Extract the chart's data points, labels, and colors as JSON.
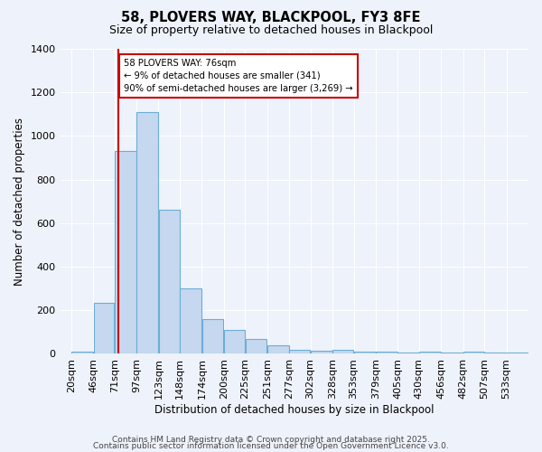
{
  "title": "58, PLOVERS WAY, BLACKPOOL, FY3 8FE",
  "subtitle": "Size of property relative to detached houses in Blackpool",
  "xlabel": "Distribution of detached houses by size in Blackpool",
  "ylabel": "Number of detached properties",
  "bin_labels": [
    "20sqm",
    "46sqm",
    "71sqm",
    "97sqm",
    "123sqm",
    "148sqm",
    "174sqm",
    "200sqm",
    "225sqm",
    "251sqm",
    "277sqm",
    "302sqm",
    "328sqm",
    "353sqm",
    "379sqm",
    "405sqm",
    "430sqm",
    "456sqm",
    "482sqm",
    "507sqm",
    "533sqm"
  ],
  "bar_values": [
    10,
    233,
    930,
    1110,
    660,
    300,
    160,
    110,
    70,
    40,
    20,
    15,
    20,
    10,
    10,
    5,
    10,
    5,
    10,
    5,
    5
  ],
  "bar_color": "#c5d8f0",
  "bar_edge_color": "#6baed6",
  "vline_color": "#cc0000",
  "annotation_title": "58 PLOVERS WAY: 76sqm",
  "annotation_line1": "← 9% of detached houses are smaller (341)",
  "annotation_line2": "90% of semi-detached houses are larger (3,269) →",
  "annotation_box_color": "#ffffff",
  "annotation_box_edge": "#cc0000",
  "ylim": [
    0,
    1400
  ],
  "yticks": [
    0,
    200,
    400,
    600,
    800,
    1000,
    1200,
    1400
  ],
  "background_color": "#eef2fa",
  "grid_color": "#ffffff",
  "footer1": "Contains HM Land Registry data © Crown copyright and database right 2025.",
  "footer2": "Contains public sector information licensed under the Open Government Licence v3.0."
}
